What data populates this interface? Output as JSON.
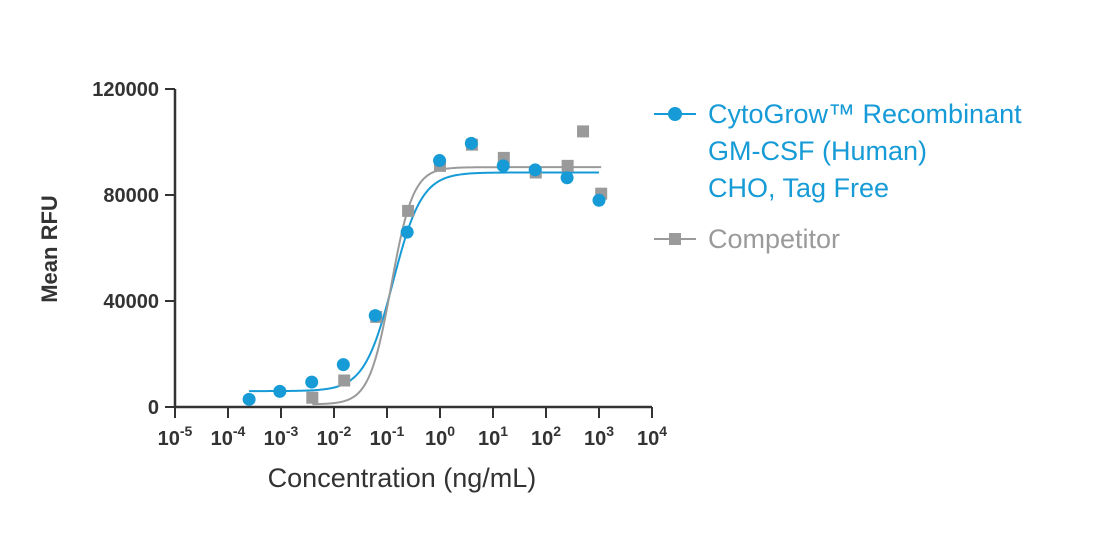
{
  "colors": {
    "primary": "#169bd7",
    "competitor": "#9a9a9a",
    "axis": "#333333"
  },
  "chart_data": {
    "type": "scatter",
    "xlabel": "Concentration (ng/mL)",
    "ylabel": "Mean RFU",
    "x_scale": "log10",
    "xlim_exponent": [
      -5,
      4
    ],
    "ylim": [
      0,
      120000
    ],
    "x_ticks": [
      {
        "base": "10",
        "exp": "-5"
      },
      {
        "base": "10",
        "exp": "-4"
      },
      {
        "base": "10",
        "exp": "-3"
      },
      {
        "base": "10",
        "exp": "-2"
      },
      {
        "base": "10",
        "exp": "-1"
      },
      {
        "base": "10",
        "exp": "0"
      },
      {
        "base": "10",
        "exp": "1"
      },
      {
        "base": "10",
        "exp": "2"
      },
      {
        "base": "10",
        "exp": "3"
      },
      {
        "base": "10",
        "exp": "4"
      }
    ],
    "y_ticks": [
      "0",
      "40000",
      "80000",
      "120000"
    ],
    "y_tick_values": [
      0,
      40000,
      80000,
      120000
    ],
    "grid": false,
    "legend_position": "right",
    "series": [
      {
        "name": "CytoGrow™ Recombinant\nGM-CSF (Human)\nCHO, Tag Free",
        "marker": "circle",
        "color": "#169bd7",
        "x": [
          0.00025,
          0.00095,
          0.0038,
          0.015,
          0.06,
          0.24,
          0.98,
          3.9,
          15.6,
          62.5,
          250,
          1000
        ],
        "y": [
          2900,
          5900,
          9400,
          16000,
          34500,
          66000,
          93000,
          99500,
          91000,
          89500,
          86500,
          78000
        ],
        "fit": {
          "bottom": 6000,
          "top": 88500,
          "ec50": 0.13,
          "hill": 1.6
        }
      },
      {
        "name": "Competitor",
        "marker": "square",
        "color": "#9a9a9a",
        "x": [
          0.0039,
          0.0156,
          0.0625,
          0.25,
          1.0,
          4.0,
          16,
          64,
          256,
          500,
          1100
        ],
        "y": [
          3500,
          10000,
          34000,
          74000,
          91000,
          99000,
          94000,
          88500,
          91000,
          104000,
          80500
        ],
        "fit": {
          "bottom": 1000,
          "top": 90500,
          "ec50": 0.12,
          "hill": 2.1
        }
      }
    ]
  }
}
